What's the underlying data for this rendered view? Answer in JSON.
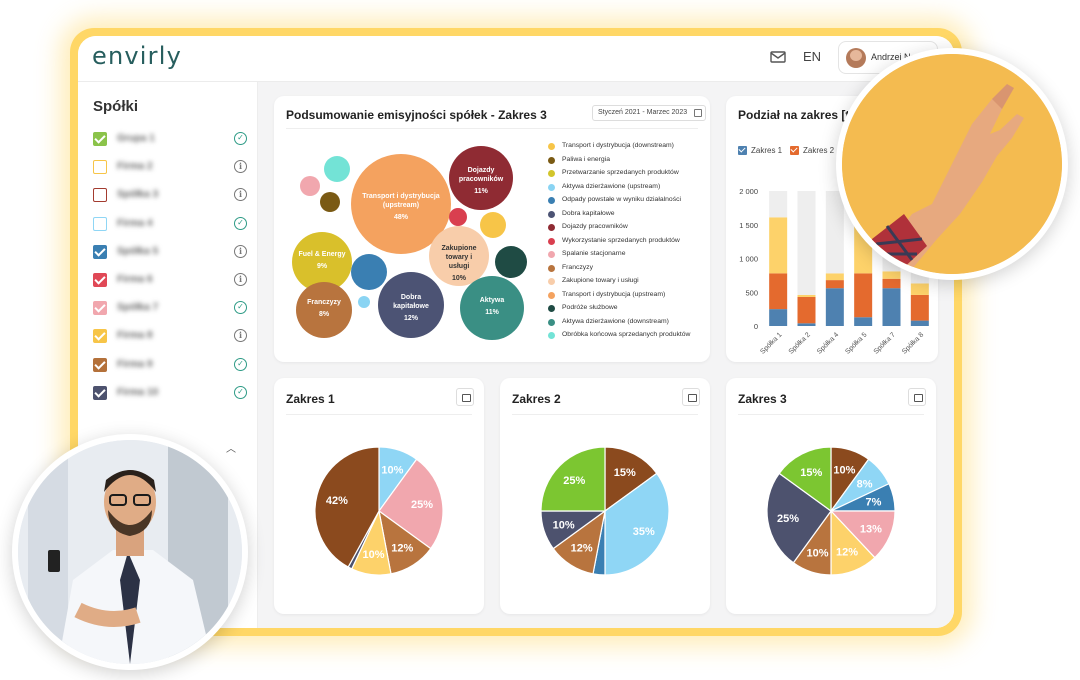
{
  "app": {
    "logo": "envirly",
    "language": "EN",
    "user_name": "Andrzej No"
  },
  "sidebar": {
    "title": "Spółki",
    "items": [
      {
        "label": "Grupa 1",
        "color": "#8bc34a",
        "checked": true,
        "status": "ok"
      },
      {
        "label": "Firma 2",
        "color": "#f7c548",
        "checked": false,
        "status": "info"
      },
      {
        "label": "Spółka 3",
        "color": "#a33b2f",
        "checked": false,
        "status": "info"
      },
      {
        "label": "Firma 4",
        "color": "#8fd6f5",
        "checked": false,
        "status": "ok"
      },
      {
        "label": "Spółka 5",
        "color": "#3a7fb2",
        "checked": true,
        "status": "info"
      },
      {
        "label": "Firma 6",
        "color": "#e04856",
        "checked": true,
        "status": "info"
      },
      {
        "label": "Spółka 7",
        "color": "#f1a7ae",
        "checked": true,
        "status": "ok"
      },
      {
        "label": "Firma 8",
        "color": "#f7c548",
        "checked": true,
        "status": "info"
      },
      {
        "label": "Firma 9",
        "color": "#b4713a",
        "checked": true,
        "status": "ok"
      },
      {
        "label": "Firma 10",
        "color": "#4d526e",
        "checked": true,
        "status": "ok"
      }
    ]
  },
  "summary": {
    "title": "Podsumowanie emisyjności spółek - Zakres 3",
    "date_range": "Styczeń 2021 - Marzec 2023",
    "bubbles": [
      {
        "name": "Transport i dystrybucja (upstream)",
        "pct": "48%",
        "color": "#f4a25f"
      },
      {
        "name": "Dojazdy pracowników",
        "pct": "11%",
        "color": "#8f2b33"
      },
      {
        "name": "Fuel & Energy",
        "pct": "9%",
        "color": "#d9c02b"
      },
      {
        "name": "Zakupione towary i usługi",
        "pct": "10%",
        "color": "#f8cdaa"
      },
      {
        "name": "Franczyzy",
        "pct": "8%",
        "color": "#b8743e"
      },
      {
        "name": "Dobra kapitałowe",
        "pct": "12%",
        "color": "#4c5374"
      },
      {
        "name": "Aktywa",
        "pct": "11%",
        "color": "#3a8f84"
      }
    ],
    "legend": [
      {
        "label": "Transport i dystrybucja (downstream)",
        "color": "#f7c548"
      },
      {
        "label": "Paliwa i energia",
        "color": "#7a5a14"
      },
      {
        "label": "Przetwarzanie sprzedanych produktów",
        "color": "#d2c52b"
      },
      {
        "label": "Aktywa dzierżawione (upstream)",
        "color": "#8ad4f3"
      },
      {
        "label": "Odpady powstałe w wyniku działalności",
        "color": "#3a7fb2"
      },
      {
        "label": "Dobra kapitałowe",
        "color": "#4c5374"
      },
      {
        "label": "Dojazdy pracowników",
        "color": "#8f2b33"
      },
      {
        "label": "Wykorzystanie sprzedanych produktów",
        "color": "#d93f4f"
      },
      {
        "label": "Spalanie stacjonarne",
        "color": "#f1a7ae"
      },
      {
        "label": "Franczyzy",
        "color": "#b8743e"
      },
      {
        "label": "Zakupione towary i usługi",
        "color": "#f8cdaa"
      },
      {
        "label": "Transport i dystrybucja (upstream)",
        "color": "#f4a25f"
      },
      {
        "label": "Podróże służbowe",
        "color": "#1f4b44"
      },
      {
        "label": "Aktywa dzierżawione (downstream)",
        "color": "#3a8f84"
      },
      {
        "label": "Obróbka końcowa sprzedanych produktów",
        "color": "#73e3d6"
      }
    ]
  },
  "bars": {
    "title": "Podział na zakres [t e",
    "legend": [
      "Zakres 1",
      "Zakres 2"
    ],
    "legend_colors": [
      "#4e81b0",
      "#e46a2e"
    ]
  },
  "pies": [
    {
      "title": "Zakres 1"
    },
    {
      "title": "Zakres 2"
    },
    {
      "title": "Zakres 3"
    }
  ],
  "chart_data": [
    {
      "type": "bar",
      "title": "Podział na zakres [t e",
      "categories": [
        "Spółka 1",
        "Spółka 2",
        "Spółka 4",
        "Spółka 5",
        "Spółka 7",
        "Spółka 8"
      ],
      "ylim": [
        0,
        2000
      ],
      "yticks": [
        "2 000",
        "1 500",
        "1 000",
        "500",
        "0"
      ],
      "series": [
        {
          "name": "Zakres 1",
          "color": "#4e81b0",
          "values": [
            250,
            40,
            560,
            130,
            560,
            80
          ]
        },
        {
          "name": "Zakres 2",
          "color": "#e46a2e",
          "values": [
            530,
            390,
            120,
            650,
            140,
            380
          ]
        },
        {
          "name": "",
          "color": "#fdd26a",
          "values": [
            830,
            30,
            100,
            900,
            110,
            170
          ]
        },
        {
          "name": "",
          "color": "#eeeeee",
          "values": [
            390,
            1540,
            1220,
            320,
            1190,
            1370
          ]
        }
      ]
    },
    {
      "type": "pie",
      "title": "Zakres 1",
      "slices": [
        {
          "value": 10,
          "label": "10%",
          "color": "#8fd6f5"
        },
        {
          "value": 25,
          "label": "25%",
          "color": "#f1a7ae"
        },
        {
          "value": 12,
          "label": "12%",
          "color": "#b8743e"
        },
        {
          "value": 10,
          "label": "10%",
          "color": "#fdd26a"
        },
        {
          "value": 1,
          "label": "",
          "color": "#4d526e"
        },
        {
          "value": 42,
          "label": "42%",
          "color": "#8b4a1e"
        }
      ]
    },
    {
      "type": "pie",
      "title": "Zakres 2",
      "slices": [
        {
          "value": 15,
          "label": "15%",
          "color": "#8b4a1e"
        },
        {
          "value": 35,
          "label": "35%",
          "color": "#8fd6f5"
        },
        {
          "value": 3,
          "label": "",
          "color": "#3a7fb2"
        },
        {
          "value": 12,
          "label": "12%",
          "color": "#b8743e"
        },
        {
          "value": 10,
          "label": "10%",
          "color": "#4d526e"
        },
        {
          "value": 25,
          "label": "25%",
          "color": "#7cc631"
        }
      ]
    },
    {
      "type": "pie",
      "title": "Zakres 3",
      "slices": [
        {
          "value": 10,
          "label": "10%",
          "color": "#8b4a1e"
        },
        {
          "value": 8,
          "label": "8%",
          "color": "#8fd6f5"
        },
        {
          "value": 7,
          "label": "7%",
          "color": "#3a7fb2"
        },
        {
          "value": 13,
          "label": "13%",
          "color": "#f1a7ae"
        },
        {
          "value": 12,
          "label": "12%",
          "color": "#fdd26a"
        },
        {
          "value": 10,
          "label": "10%",
          "color": "#b8743e"
        },
        {
          "value": 25,
          "label": "25%",
          "color": "#4d526e"
        },
        {
          "value": 15,
          "label": "15%",
          "color": "#7cc631"
        }
      ]
    }
  ]
}
